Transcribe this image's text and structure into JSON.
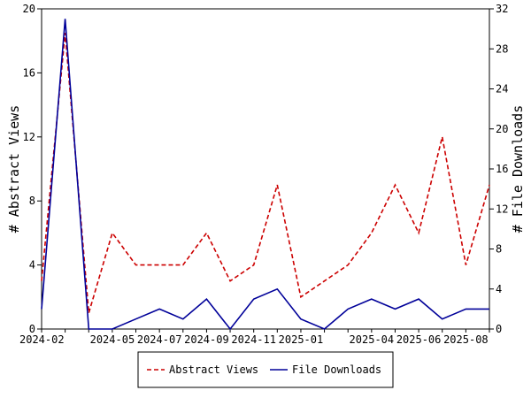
{
  "chart_data": {
    "type": "line",
    "x": [
      "2024-02",
      "2024-03",
      "2024-04",
      "2024-05",
      "2024-06",
      "2024-07",
      "2024-08",
      "2024-09",
      "2024-10",
      "2024-11",
      "2024-12",
      "2025-01",
      "2025-02",
      "2025-03",
      "2025-04",
      "2025-05",
      "2025-06",
      "2025-07",
      "2025-08",
      "2025-09"
    ],
    "x_tick_labels": [
      "2024-02",
      "2024-05",
      "2024-07",
      "2024-09",
      "2024-11",
      "2025-01",
      "2025-04",
      "2025-06",
      "2025-08"
    ],
    "series": [
      {
        "name": "Abstract Views",
        "axis": "left",
        "color": "#cc0000",
        "style": "dashed",
        "values": [
          3,
          18.5,
          1,
          6,
          4,
          4,
          4,
          6,
          3,
          4,
          9,
          2,
          3,
          4,
          6,
          9,
          6,
          12,
          4,
          9
        ]
      },
      {
        "name": "File Downloads",
        "axis": "right",
        "color": "#000099",
        "style": "solid",
        "values": [
          2,
          31,
          0,
          0,
          1,
          2,
          1,
          3,
          0,
          3,
          4,
          1,
          0,
          2,
          3,
          2,
          3,
          1,
          2,
          2
        ]
      }
    ],
    "ylabel_left": "# Abstract Views",
    "ylabel_right": "# File Downloads",
    "ylim_left": [
      0,
      20
    ],
    "ylim_right": [
      0,
      32
    ],
    "yticks_left": [
      0,
      4,
      8,
      12,
      16,
      20
    ],
    "yticks_right": [
      0,
      4,
      8,
      12,
      16,
      20,
      24,
      28,
      32
    ],
    "grid": false,
    "legend_position": "bottom-center"
  }
}
